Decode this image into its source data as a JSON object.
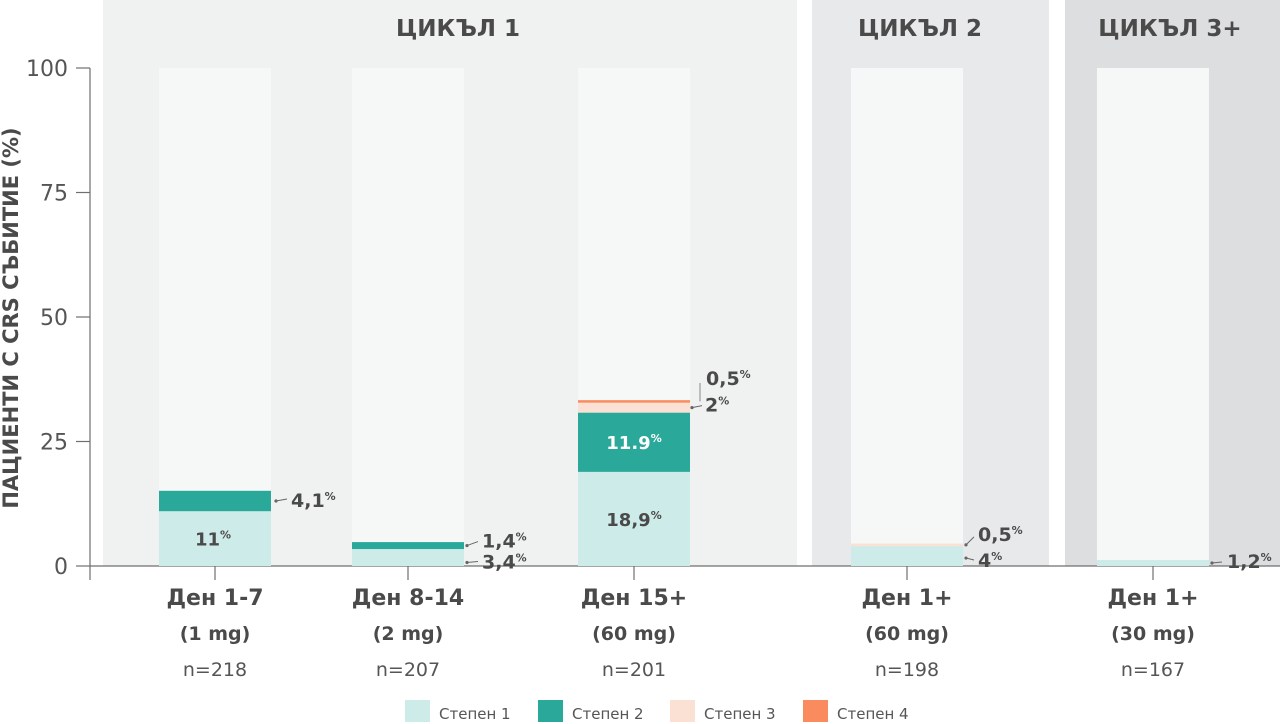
{
  "chart_data": {
    "type": "bar",
    "stacked": true,
    "ylabel": "ПАЦИЕНТИ С CRS СЪБИТИЕ (%)",
    "ylim": [
      0,
      100
    ],
    "yticks": [
      0,
      25,
      50,
      75,
      100
    ],
    "grid": false,
    "legend_position": "bottom",
    "panels": [
      {
        "title": "ЦИКЪЛ 1",
        "categories": [
          0,
          1,
          2
        ]
      },
      {
        "title": "ЦИКЪЛ 2",
        "categories": [
          3
        ]
      },
      {
        "title": "ЦИКЪЛ 3+",
        "categories": [
          4
        ]
      }
    ],
    "categories": [
      {
        "day": "Ден 1-7",
        "dose": "(1 mg)",
        "n": "n=218"
      },
      {
        "day": "Ден 8-14",
        "dose": "(2 mg)",
        "n": "n=207"
      },
      {
        "day": "Ден 15+",
        "dose": "(60 mg)",
        "n": "n=201"
      },
      {
        "day": "Ден 1+",
        "dose": "(60 mg)",
        "n": "n=198"
      },
      {
        "day": "Ден 1+",
        "dose": "(30 mg)",
        "n": "n=167"
      }
    ],
    "series": [
      {
        "name": "Степен 1",
        "color": "#cdebe8",
        "values": [
          11,
          3.4,
          18.9,
          4,
          1.2
        ],
        "labels": [
          "11",
          "3,4",
          "18,9",
          "4",
          "1,2"
        ]
      },
      {
        "name": "Степен 2",
        "color": "#2aa89a",
        "values": [
          4.1,
          1.4,
          11.9,
          0,
          0
        ],
        "labels": [
          "4,1",
          "1,4",
          "11.9",
          "",
          ""
        ]
      },
      {
        "name": "Степен 3",
        "color": "#fbe1d4",
        "values": [
          0,
          0,
          2,
          0.5,
          0
        ],
        "labels": [
          "",
          "",
          "2",
          "0,5",
          ""
        ]
      },
      {
        "name": "Степен 4",
        "color": "#f98b5e",
        "values": [
          0,
          0,
          0.5,
          0,
          0
        ],
        "labels": [
          "",
          "",
          "0,5",
          "",
          ""
        ]
      }
    ],
    "percent_sign": "%"
  }
}
